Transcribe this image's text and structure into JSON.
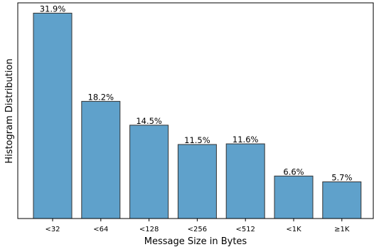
{
  "chart_data": {
    "type": "bar",
    "title": "",
    "xlabel": "Message Size in Bytes",
    "ylabel": "Histogram Distribution",
    "categories": [
      "<32",
      "<64",
      "<128",
      "<256",
      "<512",
      "<1K",
      "≥1K"
    ],
    "values": [
      31.9,
      18.2,
      14.5,
      11.5,
      11.6,
      6.6,
      5.7
    ],
    "data_labels": [
      "31.9%",
      "18.2%",
      "14.5%",
      "11.5%",
      "11.6%",
      "6.6%",
      "5.7%"
    ],
    "ylim": [
      0,
      33.5
    ],
    "grid": false,
    "y_ticks_shown": false,
    "bar_color": "#5fa1cb",
    "bar_edge_color": "#333333"
  }
}
